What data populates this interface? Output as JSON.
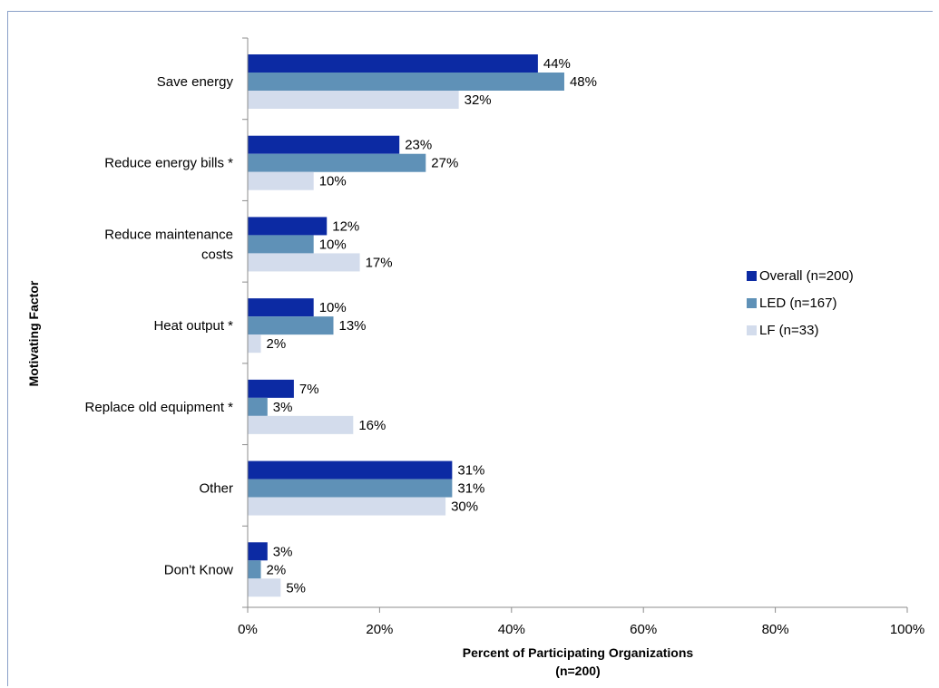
{
  "chart_data": {
    "type": "bar",
    "orientation": "horizontal",
    "categories": [
      [
        "Save energy"
      ],
      [
        "Reduce energy bills *"
      ],
      [
        "Reduce maintenance",
        "costs"
      ],
      [
        "Heat output *"
      ],
      [
        "Replace old equipment *"
      ],
      [
        "Other"
      ],
      [
        "Don't Know"
      ]
    ],
    "series": [
      {
        "name": "Overall (n=200)",
        "color": "#0c2aa3",
        "values": [
          44,
          23,
          12,
          10,
          7,
          31,
          3
        ]
      },
      {
        "name": "LED (n=167)",
        "color": "#5f91b7",
        "values": [
          48,
          27,
          10,
          13,
          3,
          31,
          2
        ]
      },
      {
        "name": "LF (n=33)",
        "color": "#d3dcec",
        "values": [
          32,
          10,
          17,
          2,
          16,
          30,
          5
        ]
      }
    ],
    "value_suffix": "%",
    "xlim": [
      0,
      100
    ],
    "xticks": [
      "0%",
      "20%",
      "40%",
      "60%",
      "80%",
      "100%"
    ],
    "xlabel": [
      "Percent of Participating Organizations",
      "(n=200)"
    ],
    "ylabel": "Motivating Factor",
    "legend": "right",
    "grid": false
  }
}
